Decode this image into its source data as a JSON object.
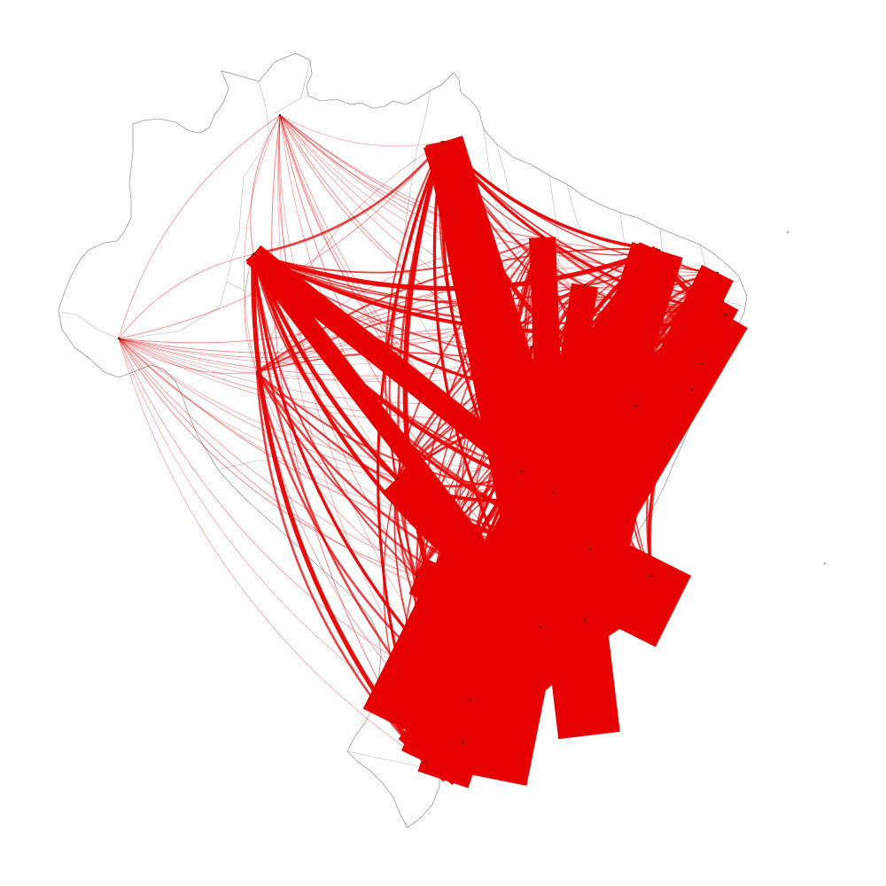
{
  "map": {
    "region": "Brazil",
    "background_color": "#ffffff",
    "outline_color": "#9a9a9a",
    "flow_color": "#e60000",
    "hubs": [
      {
        "id": "boa-vista"
      },
      {
        "id": "manaus"
      },
      {
        "id": "rio-branco"
      },
      {
        "id": "belem"
      },
      {
        "id": "sao-luis"
      },
      {
        "id": "teresina"
      },
      {
        "id": "fortaleza"
      },
      {
        "id": "natal"
      },
      {
        "id": "joao-pessoa"
      },
      {
        "id": "recife"
      },
      {
        "id": "maceio"
      },
      {
        "id": "aracaju"
      },
      {
        "id": "salvador"
      },
      {
        "id": "palmas"
      },
      {
        "id": "porto-velho"
      },
      {
        "id": "cuiaba"
      },
      {
        "id": "campo-grande"
      },
      {
        "id": "goiania"
      },
      {
        "id": "brasilia"
      },
      {
        "id": "belo-horizonte"
      },
      {
        "id": "vitoria"
      },
      {
        "id": "rio-de-janeiro"
      },
      {
        "id": "sao-paulo"
      },
      {
        "id": "curitiba"
      },
      {
        "id": "florianopolis"
      },
      {
        "id": "porto-alegre"
      }
    ]
  }
}
